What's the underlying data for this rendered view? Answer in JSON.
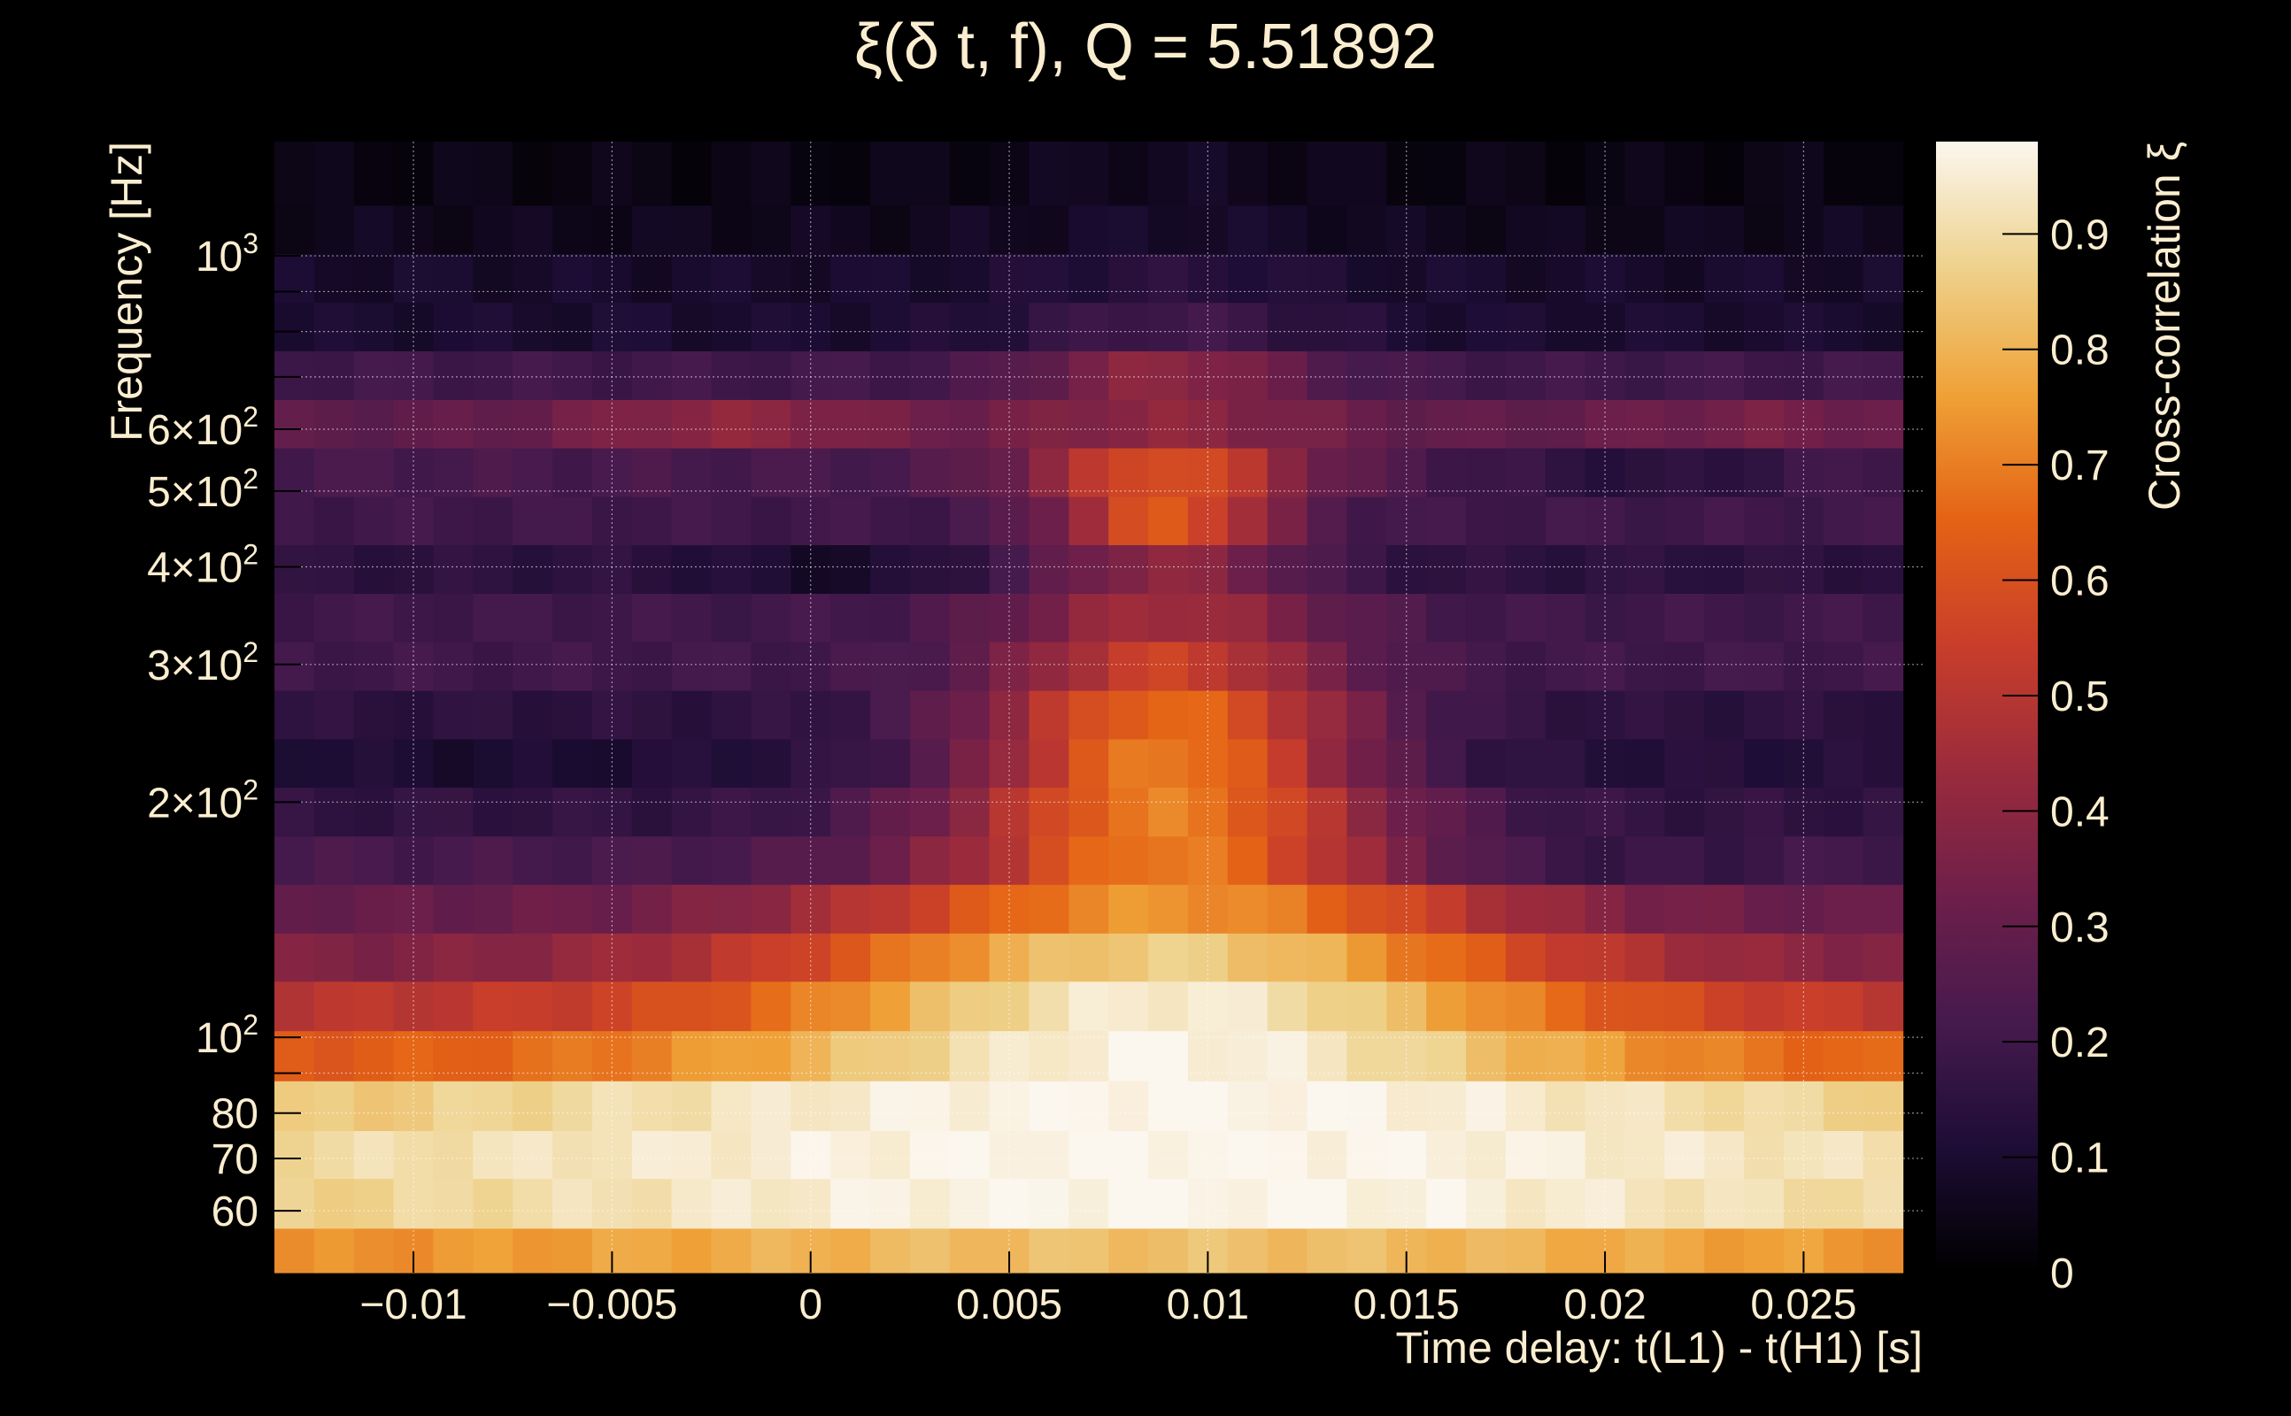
{
  "chart_data": {
    "type": "heatmap",
    "title_main": "ξ(δ t, f), Q = 5.51892",
    "xlabel": "Time delay: t(L1) - t(H1) [s]",
    "ylabel": "Frequency [Hz]",
    "colorbar_label": "Cross-correlation ξ",
    "x_range": [
      -0.0135,
      0.028
    ],
    "y_range": [
      50,
      1400
    ],
    "y_scale": "log",
    "z_range": [
      0,
      0.98
    ],
    "grid": true,
    "colormap": [
      "#000004",
      "#1b0c41",
      "#4a0c6b",
      "#781c6d",
      "#a52c60",
      "#cf4446",
      "#ed6925",
      "#fb9b06",
      "#f7d13d",
      "#fcffa4"
    ],
    "colormap_display": [
      "#000000",
      "#1d0d35",
      "#461a4d",
      "#6e1f4a",
      "#9b2b3c",
      "#c93e2a",
      "#e46315",
      "#efa238",
      "#eed28c",
      "#fbf6ee"
    ],
    "x_ticks": [
      {
        "value": -0.01,
        "label": "−0.01"
      },
      {
        "value": -0.005,
        "label": "−0.005"
      },
      {
        "value": 0,
        "label": "0"
      },
      {
        "value": 0.005,
        "label": "0.005"
      },
      {
        "value": 0.01,
        "label": "0.01"
      },
      {
        "value": 0.015,
        "label": "0.015"
      },
      {
        "value": 0.02,
        "label": "0.02"
      },
      {
        "value": 0.025,
        "label": "0.025"
      }
    ],
    "y_ticks": [
      {
        "value": 60,
        "label": "60"
      },
      {
        "value": 70,
        "label": "70"
      },
      {
        "value": 80,
        "label": "80"
      },
      {
        "value": 100,
        "label": "10",
        "sup": "2"
      },
      {
        "value": 200,
        "label": "2×10",
        "sup": "2"
      },
      {
        "value": 300,
        "label": "3×10",
        "sup": "2"
      },
      {
        "value": 400,
        "label": "4×10",
        "sup": "2"
      },
      {
        "value": 500,
        "label": "5×10",
        "sup": "2"
      },
      {
        "value": 600,
        "label": "6×10",
        "sup": "2"
      },
      {
        "value": 1000,
        "label": "10",
        "sup": "3"
      }
    ],
    "colorbar_ticks": [
      {
        "value": 0,
        "label": "0"
      },
      {
        "value": 0.1,
        "label": "0.1"
      },
      {
        "value": 0.2,
        "label": "0.2"
      },
      {
        "value": 0.3,
        "label": "0.3"
      },
      {
        "value": 0.4,
        "label": "0.4"
      },
      {
        "value": 0.5,
        "label": "0.5"
      },
      {
        "value": 0.6,
        "label": "0.6"
      },
      {
        "value": 0.7,
        "label": "0.7"
      },
      {
        "value": 0.8,
        "label": "0.8"
      },
      {
        "value": 0.9,
        "label": "0.9"
      }
    ],
    "x_bins": {
      "start": -0.0135,
      "step": 0.001,
      "count": 41
    },
    "y_bin_edges": [
      50,
      57,
      66,
      76,
      88,
      102,
      118,
      136,
      157,
      181,
      209,
      241,
      278,
      321,
      370,
      427,
      492,
      568,
      655,
      756,
      872,
      1006,
      1161,
      1400
    ],
    "rows": [
      {
        "f_center": 53,
        "base": 0.7,
        "peak": 0.83,
        "peak_x": 0.009,
        "width": 0.012
      },
      {
        "f_center": 61,
        "base": 0.82,
        "peak": 0.98,
        "peak_x": 0.009,
        "width": 0.014
      },
      {
        "f_center": 71,
        "base": 0.86,
        "peak": 0.98,
        "peak_x": 0.009,
        "width": 0.014
      },
      {
        "f_center": 82,
        "base": 0.8,
        "peak": 0.98,
        "peak_x": 0.009,
        "width": 0.013
      },
      {
        "f_center": 95,
        "base": 0.62,
        "peak": 0.97,
        "peak_x": 0.009,
        "width": 0.008
      },
      {
        "f_center": 110,
        "base": 0.5,
        "peak": 0.95,
        "peak_x": 0.009,
        "width": 0.007
      },
      {
        "f_center": 127,
        "base": 0.36,
        "peak": 0.86,
        "peak_x": 0.009,
        "width": 0.007
      },
      {
        "f_center": 146,
        "base": 0.3,
        "peak": 0.74,
        "peak_x": 0.009,
        "width": 0.006
      },
      {
        "f_center": 169,
        "base": 0.22,
        "peak": 0.7,
        "peak_x": 0.009,
        "width": 0.004
      },
      {
        "f_center": 194,
        "base": 0.16,
        "peak": 0.7,
        "peak_x": 0.009,
        "width": 0.004
      },
      {
        "f_center": 224,
        "base": 0.13,
        "peak": 0.7,
        "peak_x": 0.009,
        "width": 0.0035
      },
      {
        "f_center": 259,
        "base": 0.15,
        "peak": 0.66,
        "peak_x": 0.009,
        "width": 0.0035
      },
      {
        "f_center": 298,
        "base": 0.2,
        "peak": 0.55,
        "peak_x": 0.009,
        "width": 0.003
      },
      {
        "f_center": 344,
        "base": 0.2,
        "peak": 0.45,
        "peak_x": 0.009,
        "width": 0.003
      },
      {
        "f_center": 397,
        "base": 0.15,
        "peak": 0.4,
        "peak_x": 0.009,
        "width": 0.0025
      },
      {
        "f_center": 458,
        "base": 0.2,
        "peak": 0.62,
        "peak_x": 0.009,
        "width": 0.002
      },
      {
        "f_center": 528,
        "base": 0.22,
        "peak": 0.6,
        "peak_x": 0.009,
        "width": 0.0025
      },
      {
        "f_center": 609,
        "base": 0.28,
        "peak": 0.4,
        "peak_x": 0.009,
        "width": 0.003
      },
      {
        "f_center": 702,
        "base": 0.2,
        "peak": 0.4,
        "peak_x": 0.009,
        "width": 0.0025
      },
      {
        "f_center": 810,
        "base": 0.1,
        "peak": 0.2,
        "peak_x": 0.009,
        "width": 0.003
      },
      {
        "f_center": 934,
        "base": 0.09,
        "peak": 0.14,
        "peak_x": 0.009,
        "width": 0.003
      },
      {
        "f_center": 1078,
        "base": 0.06,
        "peak": 0.09,
        "peak_x": 0.009,
        "width": 0.003
      },
      {
        "f_center": 1270,
        "base": 0.04,
        "peak": 0.07,
        "peak_x": 0.009,
        "width": 0.003
      }
    ],
    "row_modulation": [
      {
        "f_center": 609,
        "bumps": [
          {
            "x": -0.002,
            "amp": 0.12,
            "w": 0.003
          },
          {
            "x": 0.024,
            "amp": 0.06,
            "w": 0.003
          }
        ]
      },
      {
        "f_center": 528,
        "bumps": [
          {
            "x": 0.021,
            "amp": -0.08,
            "w": 0.003
          }
        ]
      },
      {
        "f_center": 397,
        "bumps": [
          {
            "x": 0.0005,
            "amp": -0.06,
            "w": 0.002
          }
        ]
      },
      {
        "f_center": 224,
        "bumps": [
          {
            "x": -0.008,
            "amp": -0.03,
            "w": 0.003
          }
        ]
      },
      {
        "f_center": 169,
        "bumps": [
          {
            "x": 0.02,
            "amp": -0.05,
            "w": 0.004
          }
        ]
      }
    ]
  }
}
